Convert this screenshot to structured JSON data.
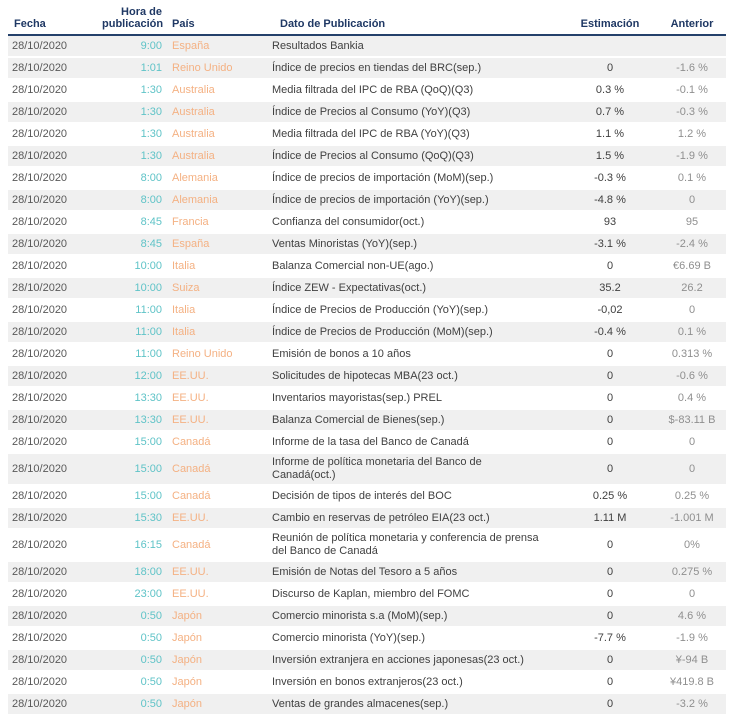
{
  "table": {
    "columns": {
      "fecha": "Fecha",
      "hora": "Hora de\npublicación",
      "pais": "País",
      "dato": "Dato de Publicación",
      "estimacion": "Estimación",
      "anterior": "Anterior"
    },
    "rows": [
      {
        "fecha": "28/10/2020",
        "hora": "9:00",
        "pais": "España",
        "dato": "Resultados Bankia",
        "estimacion": "",
        "anterior": ""
      },
      {
        "fecha": "28/10/2020",
        "hora": "1:01",
        "pais": "Reino Unido",
        "dato": "Índice de precios en tiendas del BRC(sep.)",
        "estimacion": "0",
        "anterior": "-1.6 %"
      },
      {
        "fecha": "28/10/2020",
        "hora": "1:30",
        "pais": "Australia",
        "dato": "Media filtrada del IPC de RBA (QoQ)(Q3)",
        "estimacion": "0.3 %",
        "anterior": "-0.1 %"
      },
      {
        "fecha": "28/10/2020",
        "hora": "1:30",
        "pais": "Australia",
        "dato": "Índice de Precios al Consumo (YoY)(Q3)",
        "estimacion": "0.7 %",
        "anterior": "-0.3 %"
      },
      {
        "fecha": "28/10/2020",
        "hora": "1:30",
        "pais": "Australia",
        "dato": "Media filtrada del IPC de RBA (YoY)(Q3)",
        "estimacion": "1.1 %",
        "anterior": "1.2 %"
      },
      {
        "fecha": "28/10/2020",
        "hora": "1:30",
        "pais": "Australia",
        "dato": "Índice de Precios al Consumo (QoQ)(Q3)",
        "estimacion": "1.5 %",
        "anterior": "-1.9 %"
      },
      {
        "fecha": "28/10/2020",
        "hora": "8:00",
        "pais": "Alemania",
        "dato": "Índice de precios de importación (MoM)(sep.)",
        "estimacion": "-0.3 %",
        "anterior": "0.1 %"
      },
      {
        "fecha": "28/10/2020",
        "hora": "8:00",
        "pais": "Alemania",
        "dato": "Índice de precios de importación (YoY)(sep.)",
        "estimacion": "-4.8 %",
        "anterior": "0"
      },
      {
        "fecha": "28/10/2020",
        "hora": "8:45",
        "pais": "Francia",
        "dato": "Confianza del consumidor(oct.)",
        "estimacion": "93",
        "anterior": "95"
      },
      {
        "fecha": "28/10/2020",
        "hora": "8:45",
        "pais": "España",
        "dato": "Ventas Minoristas (YoY)(sep.)",
        "estimacion": "-3.1 %",
        "anterior": "-2.4 %"
      },
      {
        "fecha": "28/10/2020",
        "hora": "10:00",
        "pais": "Italia",
        "dato": "Balanza Comercial non-UE(ago.)",
        "estimacion": "0",
        "anterior": "€6.69 B"
      },
      {
        "fecha": "28/10/2020",
        "hora": "10:00",
        "pais": "Suiza",
        "dato": "Índice ZEW - Expectativas(oct.)",
        "estimacion": "35.2",
        "anterior": "26.2"
      },
      {
        "fecha": "28/10/2020",
        "hora": "11:00",
        "pais": "Italia",
        "dato": "Índice de Precios de Producción (YoY)(sep.)",
        "estimacion": "-0,02",
        "anterior": "0"
      },
      {
        "fecha": "28/10/2020",
        "hora": "11:00",
        "pais": "Italia",
        "dato": "Índice de Precios de Producción (MoM)(sep.)",
        "estimacion": "-0.4 %",
        "anterior": "0.1 %"
      },
      {
        "fecha": "28/10/2020",
        "hora": "11:00",
        "pais": "Reino Unido",
        "dato": "Emisión de bonos a 10 años",
        "estimacion": "0",
        "anterior": "0.313 %"
      },
      {
        "fecha": "28/10/2020",
        "hora": "12:00",
        "pais": "EE.UU.",
        "dato": "Solicitudes de hipotecas MBA(23 oct.)",
        "estimacion": "0",
        "anterior": "-0.6 %"
      },
      {
        "fecha": "28/10/2020",
        "hora": "13:30",
        "pais": "EE.UU.",
        "dato": "Inventarios mayoristas(sep.) PREL",
        "estimacion": "0",
        "anterior": "0.4 %"
      },
      {
        "fecha": "28/10/2020",
        "hora": "13:30",
        "pais": "EE.UU.",
        "dato": "Balanza Comercial de Bienes(sep.)",
        "estimacion": "0",
        "anterior": "$-83.11 B"
      },
      {
        "fecha": "28/10/2020",
        "hora": "15:00",
        "pais": "Canadá",
        "dato": "Informe de la tasa del Banco de Canadá",
        "estimacion": "0",
        "anterior": "0"
      },
      {
        "fecha": "28/10/2020",
        "hora": "15:00",
        "pais": "Canadá",
        "dato": "Informe de política monetaria del Banco de Canadá(oct.)",
        "estimacion": "0",
        "anterior": "0"
      },
      {
        "fecha": "28/10/2020",
        "hora": "15:00",
        "pais": "Canadá",
        "dato": "Decisión de tipos de interés del BOC",
        "estimacion": "0.25 %",
        "anterior": "0.25 %"
      },
      {
        "fecha": "28/10/2020",
        "hora": "15:30",
        "pais": "EE.UU.",
        "dato": "Cambio en reservas de petróleo EIA(23 oct.)",
        "estimacion": "1.11 M",
        "anterior": "-1.001 M"
      },
      {
        "fecha": "28/10/2020",
        "hora": "16:15",
        "pais": "Canadá",
        "dato": "Reunión de política monetaria y conferencia de prensa del Banco de Canadá",
        "estimacion": "0",
        "anterior": "0%"
      },
      {
        "fecha": "28/10/2020",
        "hora": "18:00",
        "pais": "EE.UU.",
        "dato": "Emisión de Notas del Tesoro a 5 años",
        "estimacion": "0",
        "anterior": "0.275 %"
      },
      {
        "fecha": "28/10/2020",
        "hora": "23:00",
        "pais": "EE.UU.",
        "dato": "Discurso de Kaplan, miembro del FOMC",
        "estimacion": "0",
        "anterior": "0"
      },
      {
        "fecha": "28/10/2020",
        "hora": "0:50",
        "pais": "Japón",
        "dato": "Comercio minorista s.a (MoM)(sep.)",
        "estimacion": "0",
        "anterior": "4.6 %"
      },
      {
        "fecha": "28/10/2020",
        "hora": "0:50",
        "pais": "Japón",
        "dato": "Comercio minorista (YoY)(sep.)",
        "estimacion": "-7.7 %",
        "anterior": "-1.9 %"
      },
      {
        "fecha": "28/10/2020",
        "hora": "0:50",
        "pais": "Japón",
        "dato": "Inversión extranjera en acciones japonesas(23 oct.)",
        "estimacion": "0",
        "anterior": "¥-94 B"
      },
      {
        "fecha": "28/10/2020",
        "hora": "0:50",
        "pais": "Japón",
        "dato": "Inversión en bonos extranjeros(23 oct.)",
        "estimacion": "0",
        "anterior": "¥419.8 B"
      },
      {
        "fecha": "28/10/2020",
        "hora": "0:50",
        "pais": "Japón",
        "dato": "Ventas de grandes almacenes(sep.)",
        "estimacion": "0",
        "anterior": "-3.2 %"
      }
    ]
  },
  "colors": {
    "header_text": "#1f3864",
    "header_rule": "#24416b",
    "time": "#5fc3c7",
    "country": "#f4b183",
    "date": "#595959",
    "event": "#404040",
    "estimate": "#404040",
    "previous": "#8f8f8f",
    "row_shade": "#f0f0f0"
  }
}
